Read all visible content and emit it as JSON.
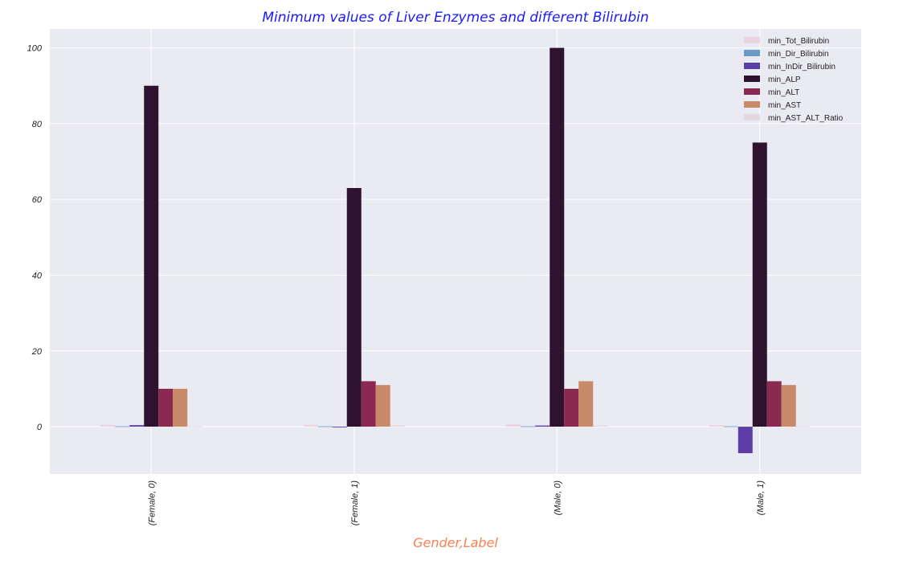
{
  "chart_data": {
    "type": "bar",
    "title": "Minimum values of Liver Enzymes and different Bilirubin",
    "xlabel": "Gender,Label",
    "ylabel": "",
    "categories": [
      "(Female, 0)",
      "(Female, 1)",
      "(Male, 0)",
      "(Male, 1)"
    ],
    "ylim": [
      -12.5,
      105
    ],
    "yticks": [
      0,
      20,
      40,
      60,
      80,
      100
    ],
    "grid": true,
    "legend_position": "top-right",
    "series": [
      {
        "name": "min_Tot_Bilirubin",
        "color": "#e8d5e0",
        "values": [
          0.5,
          0.5,
          0.6,
          0.4
        ]
      },
      {
        "name": "min_Dir_Bilirubin",
        "color": "#6b9ac4",
        "values": [
          0.1,
          0.1,
          0.1,
          0.1
        ]
      },
      {
        "name": "min_InDir_Bilirubin",
        "color": "#5b3ea6",
        "values": [
          0.4,
          -0.2,
          0.3,
          -7.0
        ]
      },
      {
        "name": "min_ALP",
        "color": "#2e1230",
        "values": [
          90,
          63,
          100,
          75
        ]
      },
      {
        "name": "min_ALT",
        "color": "#8b2a50",
        "values": [
          10,
          12,
          10,
          12
        ]
      },
      {
        "name": "min_AST",
        "color": "#c98a6a",
        "values": [
          10,
          11,
          12,
          11
        ]
      },
      {
        "name": "min_AST_ALT_Ratio",
        "color": "#e5d8df",
        "values": [
          0.1,
          0.4,
          0.3,
          0.1
        ]
      }
    ]
  }
}
